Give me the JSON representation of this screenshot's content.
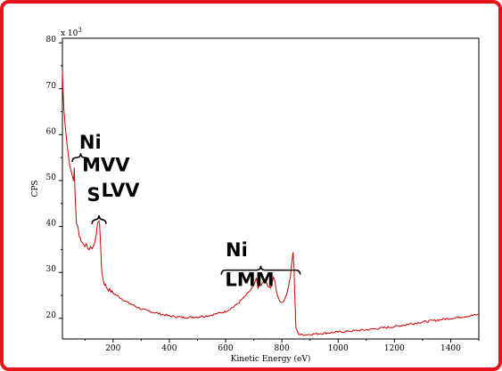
{
  "chart_data": {
    "type": "line",
    "title": "",
    "xlabel": "Kinetic Energy (eV)",
    "ylabel": "CPS",
    "y_multiplier_label": "x 10",
    "y_multiplier_exponent": "3",
    "xlim": [
      20,
      1500
    ],
    "ylim": [
      15.5,
      81
    ],
    "x_ticks": [
      200,
      400,
      600,
      800,
      1000,
      1200,
      1400
    ],
    "x_tick_labels": [
      "200",
      "400",
      "600",
      "800",
      "1000",
      "1200",
      "1400"
    ],
    "y_ticks": [
      20,
      30,
      40,
      50,
      60,
      70,
      80
    ],
    "y_tick_labels": [
      "20",
      "30",
      "40",
      "50",
      "60",
      "70",
      "80"
    ],
    "grid": false,
    "legend": "none",
    "line_color": "#cc0000",
    "series": [
      {
        "x": [
          20,
          22,
          25,
          30,
          35,
          40,
          45,
          50,
          55,
          60,
          62,
          65,
          68,
          70,
          75,
          80,
          90,
          100,
          110,
          115,
          120,
          125,
          130,
          135,
          140,
          145,
          150,
          152,
          155,
          158,
          160,
          165,
          170,
          180,
          200,
          250,
          300,
          350,
          400,
          450,
          500,
          550,
          600,
          620,
          640,
          660,
          680,
          700,
          705,
          710,
          715,
          720,
          730,
          740,
          750,
          760,
          770,
          775,
          780,
          785,
          790,
          800,
          810,
          820,
          830,
          835,
          840,
          843,
          846,
          850,
          855,
          860,
          870,
          900,
          1000,
          1100,
          1200,
          1300,
          1400,
          1500
        ],
        "y": [
          74,
          70,
          66,
          62,
          59,
          56,
          54,
          52,
          51,
          50,
          53,
          47,
          43,
          41,
          40,
          38,
          36.5,
          36,
          35.5,
          35,
          35.2,
          35.4,
          35.8,
          36.5,
          38,
          41,
          41.5,
          40,
          37,
          33,
          30,
          28.5,
          27.5,
          26.5,
          25.5,
          23.5,
          22,
          21.2,
          20.5,
          20.2,
          20.3,
          20.7,
          21.5,
          22.2,
          23,
          24.2,
          25.5,
          27,
          28,
          28.5,
          26.5,
          27,
          27.5,
          28.5,
          27,
          26.5,
          29,
          28,
          26,
          25,
          24,
          23.5,
          24,
          26,
          29,
          32,
          34.5,
          31,
          25,
          18,
          17,
          16.6,
          16.4,
          16.5,
          17,
          17.5,
          18.2,
          19.2,
          20,
          20.8
        ]
      }
    ],
    "annotations": [
      {
        "text": "Ni",
        "x": 80,
        "y": 57
      },
      {
        "text": "MVV",
        "x": 90,
        "y": 52
      },
      {
        "text": "S",
        "x": 107,
        "y": 45.5
      },
      {
        "text": "LVV",
        "x": 158,
        "y": 46.5
      },
      {
        "text": "Ni",
        "x": 600,
        "y": 33.5
      },
      {
        "text": "LMM",
        "x": 598,
        "y": 27
      }
    ],
    "braces": [
      {
        "x_start": 55,
        "x_end": 115,
        "y": 55
      },
      {
        "x_start": 125,
        "x_end": 175,
        "y": 41.5
      },
      {
        "x_start": 585,
        "x_end": 865,
        "y": 30.5
      }
    ]
  }
}
